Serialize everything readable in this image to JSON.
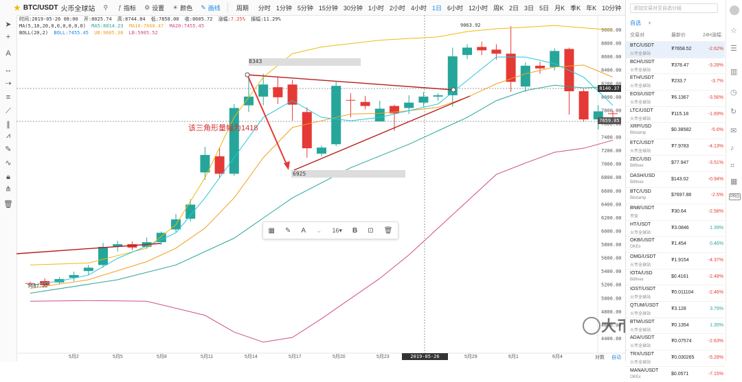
{
  "toolbar": {
    "pair": "BTC/USDT",
    "exchange": "火币全球站",
    "indicators": "指标",
    "settings": "设置",
    "theme": "颜色",
    "draw": "画线",
    "period_label": "周期",
    "intervals": [
      "分时",
      "1分钟",
      "5分钟",
      "15分钟",
      "30分钟",
      "1小时",
      "2小时",
      "4小时",
      "1日",
      "6小时",
      "12小时",
      "周K",
      "2日",
      "3日",
      "5日",
      "月K",
      "季K",
      "年K",
      "10分钟"
    ],
    "active_interval": "1日"
  },
  "info": {
    "time_label": "时间:",
    "time": "2019-05-26 08:00",
    "open_label": "开:",
    "open": "8025.74",
    "high_label": "高:",
    "high": "8744.84",
    "low_label": "低:",
    "low": "7858.00",
    "close_label": "收:",
    "close": "8605.72",
    "chg_label": "涨幅:",
    "chg": "7.25%",
    "amp_label": "振幅:",
    "amp": "11.29%",
    "ma_label": "MA(5,10,20,0,0,0,0,0,0)",
    "ma5": "MA5:8014.23",
    "ma10": "MA10:7668.47",
    "ma20": "MA20:7455.45",
    "boll_label": "BOLL(20,2)",
    "boll": "BOLL:7455.45",
    "ub": "UB:9005.38",
    "lb": "LB:5905.52"
  },
  "chart_data": {
    "type": "candlestick",
    "price_ticks": [
      "9000.00",
      "8800.00",
      "8600.00",
      "8400.00",
      "8200.00",
      "8000.00",
      "7800.00",
      "7600.00",
      "7400.00",
      "7200.00",
      "7000.00",
      "6800.00",
      "6600.00",
      "6400.00",
      "6200.00",
      "6000.00",
      "5800.00",
      "5600.00",
      "5400.00",
      "5200.00",
      "5000.00",
      "4800.00",
      "4600.00",
      "4400.00"
    ],
    "x_labels": [
      "5月2",
      "5月5",
      "5月8",
      "5月11",
      "5月14",
      "5月17",
      "5月20",
      "5月23",
      "5月29",
      "6月1",
      "6月4"
    ],
    "annotations": {
      "high_label": "8343",
      "low_label": "6925",
      "peak_label": "9063.92",
      "low_point_label": "5187.22",
      "triangle_text": "该三角形量幅为1418"
    },
    "price_tags": {
      "current1": "8140.37",
      "current2": "7659.05"
    },
    "crosshair_date": "2019-05-26 08:00:00"
  },
  "float_toolbar": {
    "font_size": "16"
  },
  "axis_footer": {
    "log": "对数",
    "auto": "自动"
  },
  "right_panel": {
    "search_placeholder": "添加交易对至自选分组",
    "tab_fav": "自选",
    "tab_plus": "+",
    "col_pair": "交易对",
    "col_price": "最新价",
    "col_chg": "24H涨幅",
    "rows": [
      {
        "sym": "BTC/USDT",
        "ex": "火币全球站",
        "px": "₮7658.52",
        "ch": "-2.62%",
        "c": "red",
        "sel": true
      },
      {
        "sym": "BCH/USDT",
        "ex": "火币全球站",
        "px": "₮378.47",
        "ch": "-3.28%",
        "c": "red"
      },
      {
        "sym": "ETH/USDT",
        "ex": "火币全球站",
        "px": "₮233.7",
        "ch": "-3.7%",
        "c": "red"
      },
      {
        "sym": "EOS/USDT",
        "ex": "火币全球站",
        "px": "₮6.1367",
        "ch": "-3.56%",
        "c": "red"
      },
      {
        "sym": "LTC/USDT",
        "ex": "火币全球站",
        "px": "₮115.18",
        "ch": "-1.69%",
        "c": "red"
      },
      {
        "sym": "XRP/USD",
        "ex": "Bitstamp",
        "px": "$0.38582",
        "ch": "-5.6%",
        "c": "red"
      },
      {
        "sym": "ETC/USDT",
        "ex": "火币全球站",
        "px": "₮7.9783",
        "ch": "-4.13%",
        "c": "red"
      },
      {
        "sym": "ZEC/USD",
        "ex": "Bitfinex",
        "px": "$77.947",
        "ch": "-3.51%",
        "c": "red"
      },
      {
        "sym": "DASH/USD",
        "ex": "Bitfinex",
        "px": "$143.02",
        "ch": "-0.94%",
        "c": "red"
      },
      {
        "sym": "BTC/USD",
        "ex": "Bitstamp",
        "px": "$7697.88",
        "ch": "-2.5%",
        "c": "red"
      },
      {
        "sym": "BNB/USDT",
        "ex": "币安",
        "px": "₮30.64",
        "ch": "-2.58%",
        "c": "red"
      },
      {
        "sym": "HT/USDT",
        "ex": "火币全球站",
        "px": "₮3.0846",
        "ch": "1.39%",
        "c": "grn"
      },
      {
        "sym": "OKB/USDT",
        "ex": "OKEx",
        "px": "₮1.454",
        "ch": "0.46%",
        "c": "grn"
      },
      {
        "sym": "OMG/USDT",
        "ex": "火币全球站",
        "px": "₮1.9154",
        "ch": "-4.37%",
        "c": "red"
      },
      {
        "sym": "IOTA/USD",
        "ex": "Bitfinex",
        "px": "$0.4161",
        "ch": "-2.48%",
        "c": "red"
      },
      {
        "sym": "IOST/USDT",
        "ex": "火币全球站",
        "px": "₮0.011104",
        "ch": "-2.46%",
        "c": "red"
      },
      {
        "sym": "QTUM/USDT",
        "ex": "火币全球站",
        "px": "₮3.128",
        "ch": "3.79%",
        "c": "grn"
      },
      {
        "sym": "BTM/USDT",
        "ex": "火币全球站",
        "px": "₮0.1354",
        "ch": "1.35%",
        "c": "grn"
      },
      {
        "sym": "ADA/USDT",
        "ex": "火币全球站",
        "px": "₮0.07574",
        "ch": "-2.63%",
        "c": "red"
      },
      {
        "sym": "TRX/USDT",
        "ex": "火币全球站",
        "px": "₮0.030265",
        "ch": "-5.28%",
        "c": "red"
      },
      {
        "sym": "MANA/USDT",
        "ex": "OKEx",
        "px": "$0.0571",
        "ch": "-7.15%",
        "c": "red"
      }
    ]
  },
  "watermark": "大币区块链",
  "colors": {
    "up": "#26a69a",
    "down": "#e53935",
    "ma5": "#26c6da",
    "ma10": "#f0a020",
    "ma20": "#26a69a",
    "boll": "#c2185b",
    "accent": "#1e88e5",
    "drawing": "#b71c1c"
  }
}
